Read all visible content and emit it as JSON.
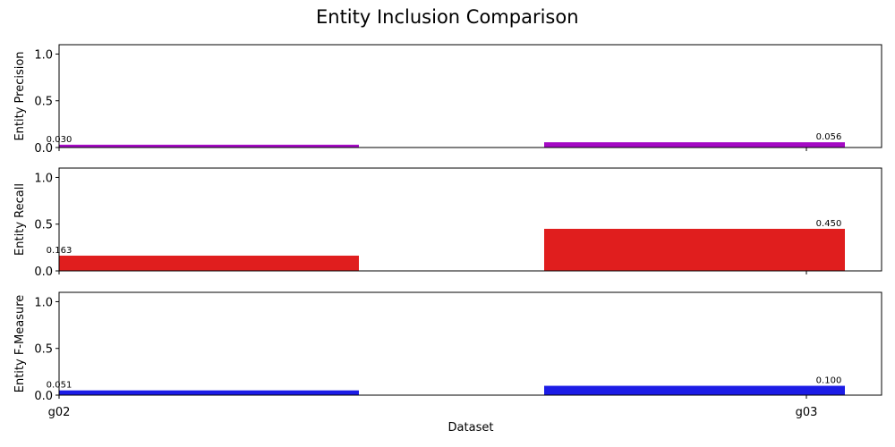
{
  "chart_data": {
    "type": "bar",
    "title": "Entity Inclusion Comparison",
    "xlabel": "Dataset",
    "categories": [
      "g02",
      "g03"
    ],
    "ylim": [
      0,
      1.1
    ],
    "yticks": [
      "0.0",
      "0.5",
      "1.0"
    ],
    "grid": false,
    "panels": [
      {
        "ylabel": "Entity Precision",
        "color": "#a40ac4",
        "values": [
          0.03,
          0.056
        ],
        "value_labels": [
          "0.030",
          "0.056"
        ]
      },
      {
        "ylabel": "Entity Recall",
        "color": "#e01e1e",
        "values": [
          0.163,
          0.45
        ],
        "value_labels": [
          "0.163",
          "0.450"
        ]
      },
      {
        "ylabel": "Entity F-Measure",
        "color": "#1c1ce6",
        "values": [
          0.051,
          0.1
        ],
        "value_labels": [
          "0.051",
          "0.100"
        ]
      }
    ]
  }
}
